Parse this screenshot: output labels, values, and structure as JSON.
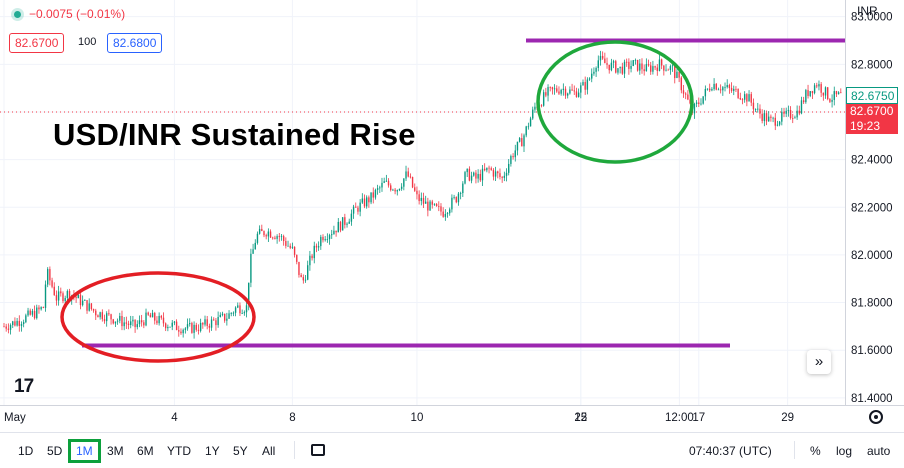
{
  "header": {
    "change": "−0.0075 (−0.01%)",
    "bid": "82.6700",
    "spread": "100",
    "ask": "82.6800",
    "currency": "INR"
  },
  "title": "USD/INR Sustained Rise",
  "logo_text": "17",
  "go_live": "»",
  "price_tags": {
    "last": "82.6750",
    "current": "82.6700",
    "countdown": "19:23"
  },
  "toolbar": {
    "ranges": [
      "1D",
      "5D",
      "1M",
      "3M",
      "6M",
      "YTD",
      "1Y",
      "5Y",
      "All"
    ],
    "active_range": "1M",
    "clock": "07:40:37 (UTC)",
    "percent": "%",
    "log": "log",
    "auto": "auto"
  },
  "colors": {
    "up": "#089981",
    "down": "#f23645",
    "resistance_line": "#9c27b0",
    "support_line": "#9c27b0",
    "consolidation_circle": "#e31e24",
    "top_circle": "#1fa83c",
    "active_range_border": "#0ca03c"
  },
  "chart_data": {
    "type": "candlestick",
    "title": "USD/INR Sustained Rise",
    "x_ticks": [
      "May",
      "4",
      "8",
      "10",
      "15",
      "17",
      "22",
      "12:00",
      "29"
    ],
    "y_ticks": [
      "83.0000",
      "82.8000",
      "82.6000",
      "82.4000",
      "82.2000",
      "82.0000",
      "81.8000",
      "81.6000",
      "81.4000"
    ],
    "ylim": [
      81.37,
      83.07
    ],
    "close_path": [
      [
        0,
        81.7
      ],
      [
        2,
        81.72
      ],
      [
        3.5,
        81.74
      ],
      [
        5,
        81.76
      ],
      [
        6,
        81.78
      ],
      [
        6.5,
        81.93
      ],
      [
        8,
        81.82
      ],
      [
        10,
        81.84
      ],
      [
        12,
        81.8
      ],
      [
        14,
        81.76
      ],
      [
        16,
        81.74
      ],
      [
        18,
        81.72
      ],
      [
        20,
        81.7
      ],
      [
        22,
        81.74
      ],
      [
        24,
        81.72
      ],
      [
        26,
        81.7
      ],
      [
        28,
        81.69
      ],
      [
        30,
        81.7
      ],
      [
        32,
        81.72
      ],
      [
        34,
        81.74
      ],
      [
        35.5,
        81.78
      ],
      [
        37,
        81.78
      ],
      [
        37.5,
        81.96
      ],
      [
        38.5,
        82.08
      ],
      [
        40,
        82.1
      ],
      [
        42,
        82.08
      ],
      [
        44,
        82.02
      ],
      [
        45.5,
        81.88
      ],
      [
        47,
        82.0
      ],
      [
        48.5,
        82.08
      ],
      [
        50,
        82.1
      ],
      [
        52,
        82.14
      ],
      [
        54,
        82.2
      ],
      [
        56,
        82.24
      ],
      [
        58,
        82.3
      ],
      [
        60,
        82.28
      ],
      [
        61.5,
        82.34
      ],
      [
        63,
        82.24
      ],
      [
        65,
        82.2
      ],
      [
        67,
        82.18
      ],
      [
        69,
        82.24
      ],
      [
        70.5,
        82.34
      ],
      [
        72,
        82.32
      ],
      [
        74,
        82.36
      ],
      [
        76,
        82.32
      ],
      [
        77.5,
        82.42
      ],
      [
        79,
        82.48
      ],
      [
        81,
        82.62
      ],
      [
        83,
        82.68
      ],
      [
        85,
        82.7
      ],
      [
        87,
        82.68
      ],
      [
        89,
        82.72
      ],
      [
        90.5,
        82.82
      ],
      [
        92,
        82.8
      ],
      [
        94,
        82.78
      ],
      [
        96,
        82.8
      ],
      [
        98,
        82.78
      ],
      [
        100,
        82.8
      ],
      [
        102,
        82.78
      ],
      [
        103.5,
        82.7
      ],
      [
        105,
        82.6
      ],
      [
        106.5,
        82.66
      ],
      [
        108,
        82.72
      ],
      [
        110,
        82.7
      ],
      [
        112,
        82.68
      ],
      [
        113.5,
        82.66
      ],
      [
        115,
        82.6
      ],
      [
        117,
        82.56
      ],
      [
        119,
        82.58
      ],
      [
        121,
        82.6
      ],
      [
        122.5,
        82.68
      ],
      [
        124,
        82.72
      ],
      [
        126,
        82.66
      ],
      [
        128,
        82.67
      ]
    ],
    "annotations": {
      "resistance_level": 82.9,
      "support_level": 81.62,
      "consolidation_circle": "around May 4 – May 8",
      "top_circle": "around May 22"
    }
  }
}
